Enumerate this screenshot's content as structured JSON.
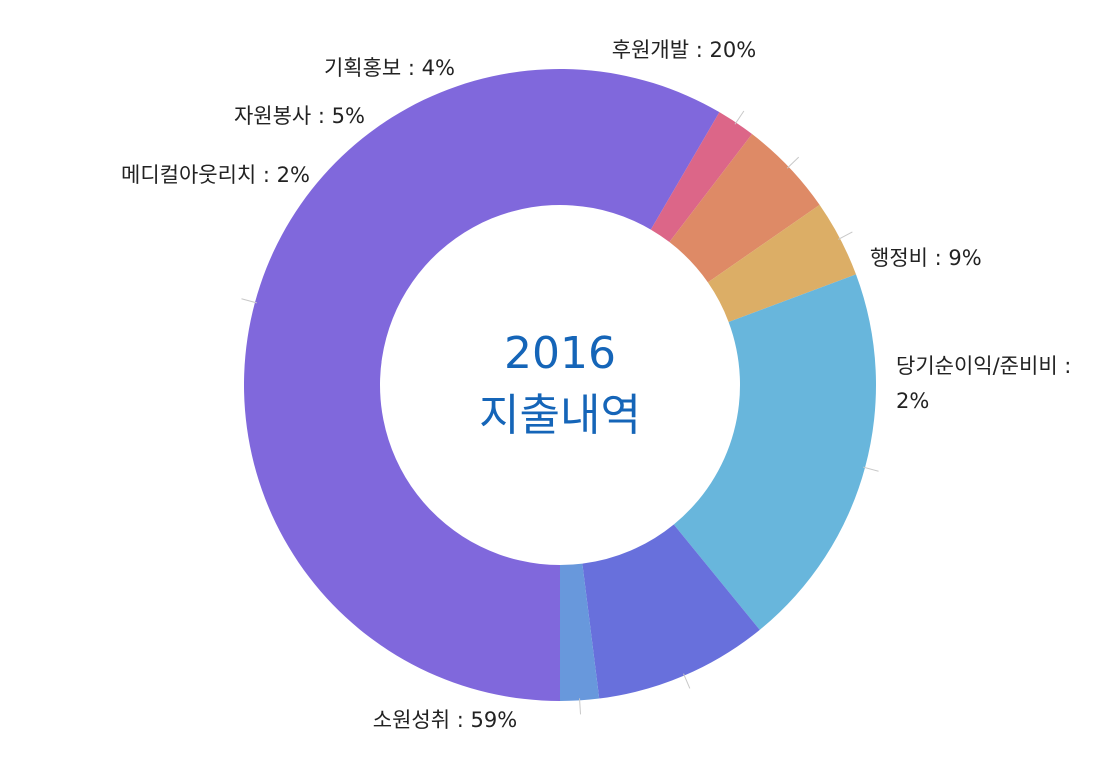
{
  "chart_data": {
    "type": "pie",
    "title_lines": [
      "2016",
      "지출내역"
    ],
    "series": [
      {
        "slices": [
          {
            "label": "소원성취 : 59%",
            "value": 59,
            "color": "#8068dc"
          },
          {
            "label": "메디컬아웃리치 : 2%",
            "value": 2,
            "color": "#dc6688"
          },
          {
            "label": "자원봉사 : 5%",
            "value": 5,
            "color": "#de8a66"
          },
          {
            "label": "기획홍보 : 4%",
            "value": 4,
            "color": "#dcae66"
          },
          {
            "label": "후원개발 : 20%",
            "value": 20,
            "color": "#68b6dc"
          },
          {
            "label": "행정비 : 9%",
            "value": 9,
            "color": "#6870dc"
          },
          {
            "label": "당기순이익/준비비 : 2%",
            "value": 2,
            "color": "#6898dc"
          }
        ]
      }
    ],
    "legend": "none",
    "grid": false
  }
}
